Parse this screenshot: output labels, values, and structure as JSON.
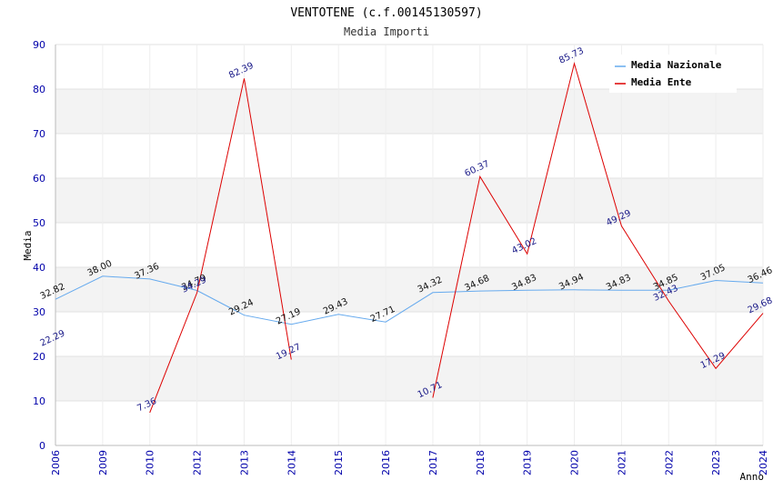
{
  "chart_data": {
    "type": "line",
    "title": "VENTOTENE (c.f.00145130597)",
    "subtitle": "Media Importi",
    "xlabel": "Anno",
    "ylabel": "Media",
    "ylim": [
      0,
      90
    ],
    "yticks": [
      0,
      10,
      20,
      30,
      40,
      50,
      60,
      70,
      80,
      90
    ],
    "grid": true,
    "legend_position": "top-right",
    "categories": [
      "2006",
      "2009",
      "2010",
      "2012",
      "2013",
      "2014",
      "2015",
      "2016",
      "2017",
      "2018",
      "2019",
      "2020",
      "2021",
      "2022",
      "2023",
      "2024"
    ],
    "series": [
      {
        "name": "Media Nazionale",
        "color": "#66aaee",
        "values": [
          32.82,
          38.0,
          37.36,
          34.79,
          29.24,
          27.19,
          29.43,
          27.71,
          34.32,
          34.68,
          34.83,
          34.94,
          34.83,
          34.85,
          37.05,
          36.46
        ],
        "labels": [
          "32.82",
          "38.00",
          "37.36",
          "34.79",
          "29.24",
          "27.19",
          "29.43",
          "27.71",
          "34.32",
          "34.68",
          "34.83",
          "34.94",
          "34.83",
          "34.85",
          "37.05",
          "36.46"
        ]
      },
      {
        "name": "Media Ente",
        "color": "#dd0000",
        "values": [
          22.29,
          null,
          7.36,
          34.29,
          82.39,
          19.27,
          null,
          null,
          10.71,
          60.37,
          43.02,
          85.73,
          49.29,
          32.43,
          17.29,
          29.68
        ],
        "labels": [
          "22.29",
          "",
          "7.36",
          "34.29",
          "82.39",
          "19.27",
          "",
          "",
          "10.71",
          "60.37",
          "43.02",
          "85.73",
          "49.29",
          "32.43",
          "17.29",
          "29.68"
        ]
      }
    ]
  }
}
